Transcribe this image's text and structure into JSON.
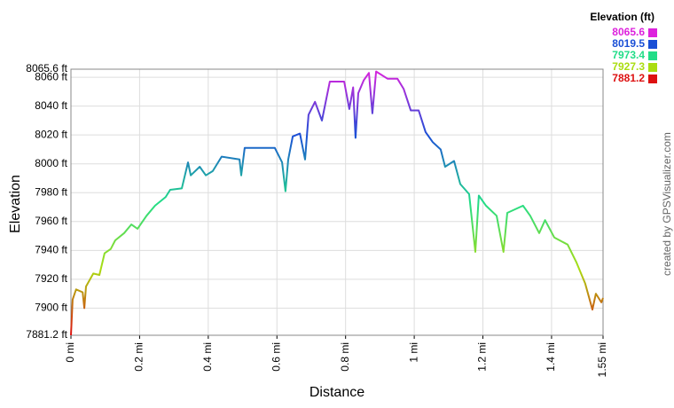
{
  "chart_data": {
    "type": "line",
    "x_label": "Distance",
    "y_label": "Elevation",
    "credit": "created by GPSVisualizer.com",
    "legend_title": "Elevation (ft)",
    "color_scale": [
      {
        "value": 8065.6,
        "color": "#dd22dd"
      },
      {
        "value": 8019.5,
        "color": "#1a4fd6"
      },
      {
        "value": 7973.4,
        "color": "#22dd88"
      },
      {
        "value": 7927.3,
        "color": "#aadd11"
      },
      {
        "value": 7881.2,
        "color": "#dd1111"
      }
    ],
    "xlim": [
      0,
      1.55
    ],
    "xticks": [
      {
        "value": 0,
        "label": "0 mi"
      },
      {
        "value": 0.2,
        "label": "0.2 mi"
      },
      {
        "value": 0.4,
        "label": "0.4 mi"
      },
      {
        "value": 0.6,
        "label": "0.6 mi"
      },
      {
        "value": 0.8,
        "label": "0.8 mi"
      },
      {
        "value": 1,
        "label": "1 mi"
      },
      {
        "value": 1.2,
        "label": "1.2 mi"
      },
      {
        "value": 1.4,
        "label": "1.4 mi"
      },
      {
        "value": 1.55,
        "label": "1.55 mi"
      }
    ],
    "ylim": [
      7881.2,
      8065.6
    ],
    "yticks": [
      {
        "value": 7881.2,
        "label": "7881.2 ft"
      },
      {
        "value": 7900,
        "label": "7900 ft"
      },
      {
        "value": 7920,
        "label": "7920 ft"
      },
      {
        "value": 7940,
        "label": "7940 ft"
      },
      {
        "value": 7960,
        "label": "7960 ft"
      },
      {
        "value": 7980,
        "label": "7980 ft"
      },
      {
        "value": 8000,
        "label": "8000 ft"
      },
      {
        "value": 8020,
        "label": "8020 ft"
      },
      {
        "value": 8040,
        "label": "8040 ft"
      },
      {
        "value": 8060,
        "label": "8060 ft"
      },
      {
        "value": 8065.6,
        "label": "8065.6 ft"
      }
    ],
    "grid": true,
    "x": [
      0,
      0.005,
      0.015,
      0.034,
      0.039,
      0.044,
      0.065,
      0.083,
      0.098,
      0.116,
      0.129,
      0.155,
      0.176,
      0.194,
      0.22,
      0.245,
      0.276,
      0.289,
      0.323,
      0.341,
      0.349,
      0.375,
      0.393,
      0.413,
      0.439,
      0.491,
      0.496,
      0.506,
      0.594,
      0.615,
      0.625,
      0.633,
      0.646,
      0.667,
      0.682,
      0.692,
      0.711,
      0.731,
      0.754,
      0.796,
      0.811,
      0.822,
      0.829,
      0.837,
      0.853,
      0.868,
      0.878,
      0.889,
      0.922,
      0.951,
      0.969,
      0.99,
      1.013,
      1.033,
      1.054,
      1.077,
      1.09,
      1.116,
      1.134,
      1.16,
      1.178,
      1.188,
      1.209,
      1.24,
      1.26,
      1.271,
      1.317,
      1.338,
      1.364,
      1.381,
      1.408,
      1.447,
      1.472,
      1.498,
      1.519,
      1.529,
      1.545,
      1.55
    ],
    "series": [
      {
        "name": "Elevation",
        "values": [
          7881.2,
          7906,
          7913,
          7911,
          7900,
          7915,
          7924,
          7923,
          7938,
          7941,
          7947,
          7952,
          7958,
          7955,
          7964,
          7971,
          7977,
          7982,
          7983,
          8001,
          7992,
          7998,
          7992,
          7995,
          8005,
          8003,
          7992,
          8011,
          8011,
          8001,
          7981,
          8003,
          8019,
          8021,
          8003,
          8034,
          8043,
          8030,
          8057,
          8057,
          8038,
          8053,
          8018,
          8049,
          8058,
          8063,
          8035,
          8064,
          8059,
          8059,
          8052,
          8037,
          8037,
          8022,
          8015,
          8010,
          7998,
          8002,
          7986,
          7979,
          7939,
          7978,
          7971,
          7964,
          7939,
          7966,
          7971,
          7964,
          7952,
          7961,
          7949,
          7944,
          7932,
          7917,
          7899,
          7910,
          7904,
          7907
        ]
      }
    ]
  }
}
